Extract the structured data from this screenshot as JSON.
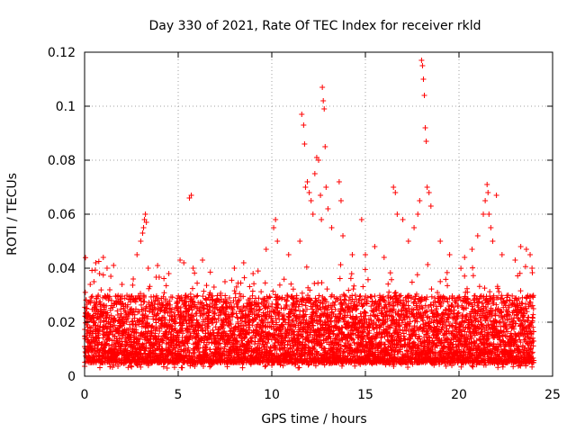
{
  "chart_data": {
    "type": "scatter",
    "title": "Day 330 of 2021, Rate Of TEC Index for receiver rkld",
    "xlabel": "GPS time / hours",
    "ylabel": "ROTI / TECUs",
    "xlim": [
      0,
      25
    ],
    "ylim": [
      0,
      0.12
    ],
    "x_ticks": [
      0,
      5,
      10,
      15,
      20,
      25
    ],
    "x_tick_labels": [
      "0",
      "5",
      "10",
      "15",
      "20",
      "25"
    ],
    "y_ticks": [
      0,
      0.02,
      0.04,
      0.06,
      0.08,
      0.1,
      0.12
    ],
    "y_tick_labels": [
      "0",
      "0.02",
      "0.04",
      "0.06",
      "0.08",
      "0.1",
      "0.12"
    ],
    "grid": true,
    "marker": "+",
    "series": [
      {
        "name": "ROTI",
        "color": "#ff0000",
        "data_range": [
          0,
          24
        ],
        "typical_band": [
          0.005,
          0.03
        ],
        "points": [
          [
            0.3,
            0.028
          ],
          [
            0.5,
            0.035
          ],
          [
            0.6,
            0.042
          ],
          [
            0.8,
            0.038
          ],
          [
            1.0,
            0.044
          ],
          [
            1.2,
            0.04
          ],
          [
            1.4,
            0.037
          ],
          [
            2.0,
            0.034
          ],
          [
            2.6,
            0.036
          ],
          [
            2.8,
            0.045
          ],
          [
            3.0,
            0.05
          ],
          [
            3.1,
            0.053
          ],
          [
            3.15,
            0.055
          ],
          [
            3.2,
            0.058
          ],
          [
            3.25,
            0.06
          ],
          [
            3.3,
            0.057
          ],
          [
            3.4,
            0.04
          ],
          [
            3.9,
            0.041
          ],
          [
            4.5,
            0.038
          ],
          [
            5.1,
            0.043
          ],
          [
            5.3,
            0.042
          ],
          [
            5.6,
            0.066
          ],
          [
            5.7,
            0.067
          ],
          [
            5.8,
            0.04
          ],
          [
            6.3,
            0.043
          ],
          [
            7.5,
            0.035
          ],
          [
            8.0,
            0.04
          ],
          [
            8.5,
            0.042
          ],
          [
            9.0,
            0.038
          ],
          [
            9.7,
            0.047
          ],
          [
            10.1,
            0.055
          ],
          [
            10.2,
            0.058
          ],
          [
            10.3,
            0.05
          ],
          [
            10.9,
            0.045
          ],
          [
            11.5,
            0.05
          ],
          [
            11.6,
            0.097
          ],
          [
            11.7,
            0.093
          ],
          [
            11.75,
            0.086
          ],
          [
            11.8,
            0.07
          ],
          [
            11.9,
            0.072
          ],
          [
            12.0,
            0.068
          ],
          [
            12.1,
            0.065
          ],
          [
            12.2,
            0.06
          ],
          [
            12.3,
            0.075
          ],
          [
            12.4,
            0.081
          ],
          [
            12.5,
            0.08
          ],
          [
            12.6,
            0.067
          ],
          [
            12.65,
            0.058
          ],
          [
            12.7,
            0.107
          ],
          [
            12.75,
            0.102
          ],
          [
            12.8,
            0.099
          ],
          [
            12.85,
            0.085
          ],
          [
            12.9,
            0.07
          ],
          [
            13.0,
            0.062
          ],
          [
            13.2,
            0.055
          ],
          [
            13.6,
            0.072
          ],
          [
            13.7,
            0.065
          ],
          [
            13.8,
            0.052
          ],
          [
            14.3,
            0.045
          ],
          [
            14.8,
            0.058
          ],
          [
            15.0,
            0.045
          ],
          [
            15.5,
            0.048
          ],
          [
            16.0,
            0.044
          ],
          [
            16.5,
            0.07
          ],
          [
            16.6,
            0.068
          ],
          [
            16.7,
            0.06
          ],
          [
            17.0,
            0.058
          ],
          [
            17.3,
            0.05
          ],
          [
            17.6,
            0.055
          ],
          [
            17.8,
            0.06
          ],
          [
            17.9,
            0.065
          ],
          [
            18.0,
            0.117
          ],
          [
            18.05,
            0.115
          ],
          [
            18.1,
            0.11
          ],
          [
            18.15,
            0.104
          ],
          [
            18.2,
            0.092
          ],
          [
            18.25,
            0.087
          ],
          [
            18.3,
            0.07
          ],
          [
            18.4,
            0.068
          ],
          [
            18.5,
            0.063
          ],
          [
            19.0,
            0.05
          ],
          [
            19.5,
            0.045
          ],
          [
            20.3,
            0.044
          ],
          [
            20.7,
            0.047
          ],
          [
            21.0,
            0.052
          ],
          [
            21.3,
            0.06
          ],
          [
            21.4,
            0.065
          ],
          [
            21.5,
            0.071
          ],
          [
            21.55,
            0.068
          ],
          [
            21.6,
            0.06
          ],
          [
            21.7,
            0.055
          ],
          [
            21.8,
            0.05
          ],
          [
            22.0,
            0.067
          ],
          [
            22.3,
            0.045
          ],
          [
            23.0,
            0.043
          ],
          [
            23.3,
            0.048
          ],
          [
            23.6,
            0.047
          ],
          [
            23.8,
            0.045
          ],
          [
            23.9,
            0.04
          ]
        ]
      }
    ]
  }
}
